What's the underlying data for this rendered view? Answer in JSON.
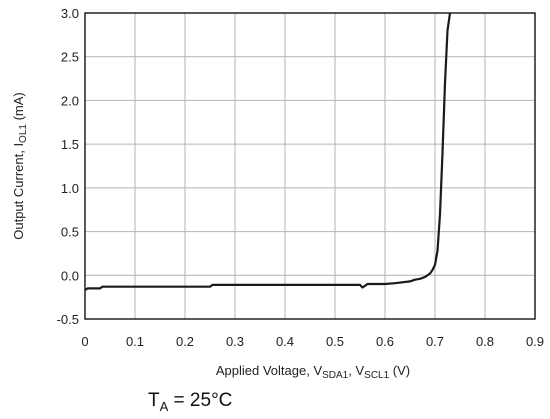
{
  "chart_data": {
    "type": "line",
    "xlabel": "Applied Voltage, V",
    "xlabel_sub1": "SDA1",
    "xlabel_mid": ", V",
    "xlabel_sub2": "SCL1",
    "xlabel_unit": " (V)",
    "ylabel": "Output Current, I",
    "ylabel_sub": "OL1",
    "ylabel_unit": " (mA)",
    "xlim": [
      0,
      0.9
    ],
    "ylim": [
      -0.5,
      3.0
    ],
    "x_ticks": [
      "0",
      "0.1",
      "0.2",
      "0.3",
      "0.4",
      "0.5",
      "0.6",
      "0.7",
      "0.8",
      "0.9"
    ],
    "y_ticks": [
      "3.0",
      "2.5",
      "2.0",
      "1.5",
      "1.0",
      "0.5",
      "0.0",
      "-0.5"
    ],
    "grid": true,
    "line_color": "#1a1a1a",
    "grid_color": "#b4b4b4",
    "series": [
      {
        "x": [
          0,
          0.005,
          0.03,
          0.035,
          0.1,
          0.2,
          0.25,
          0.255,
          0.3,
          0.4,
          0.5,
          0.55,
          0.555,
          0.56,
          0.565,
          0.6,
          0.62,
          0.65,
          0.66,
          0.67,
          0.68,
          0.69,
          0.695,
          0.7,
          0.705,
          0.71,
          0.715,
          0.72,
          0.725,
          0.73
        ],
        "y": [
          -0.17,
          -0.15,
          -0.15,
          -0.13,
          -0.13,
          -0.13,
          -0.13,
          -0.11,
          -0.11,
          -0.11,
          -0.11,
          -0.11,
          -0.14,
          -0.12,
          -0.1,
          -0.1,
          -0.09,
          -0.07,
          -0.05,
          -0.04,
          -0.02,
          0.02,
          0.06,
          0.12,
          0.28,
          0.7,
          1.4,
          2.2,
          2.8,
          3.0
        ]
      }
    ]
  },
  "annotation": {
    "var": "T",
    "sub": "A",
    "value": " = 25°C"
  }
}
